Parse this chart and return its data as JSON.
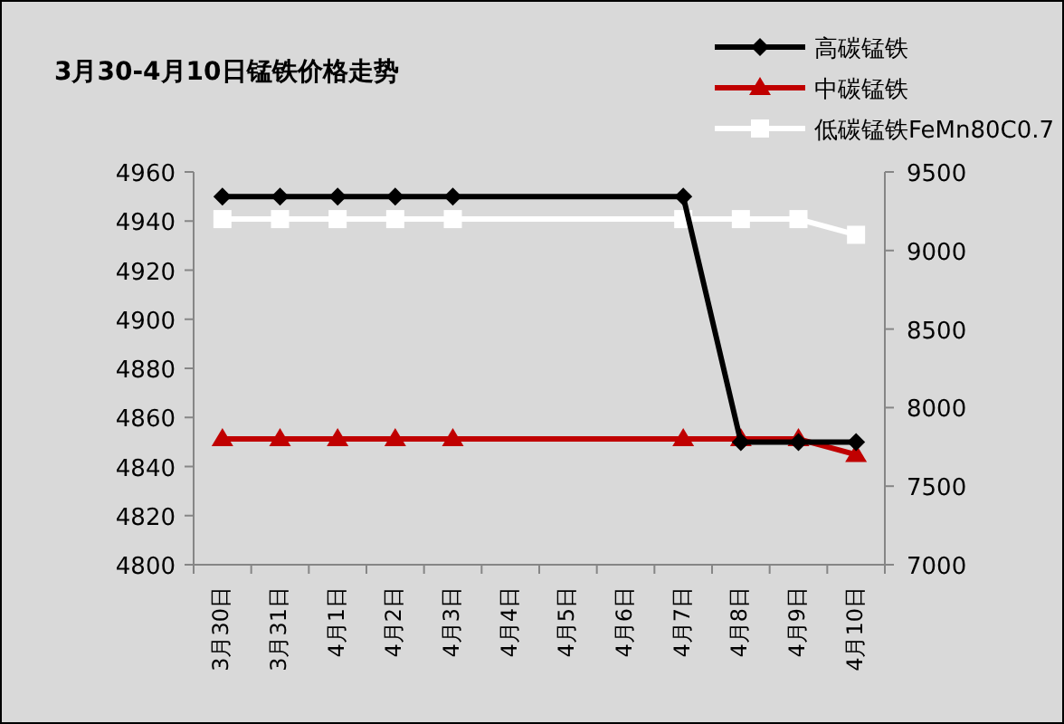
{
  "chart_data": {
    "type": "line",
    "title": "3月30-4月10日锰铁价格走势",
    "categories": [
      "3月30日",
      "3月31日",
      "4月1日",
      "4月2日",
      "4月3日",
      "4月4日",
      "4月5日",
      "4月6日",
      "4月7日",
      "4月8日",
      "4月9日",
      "4月10日"
    ],
    "series": [
      {
        "name": "高碳锰铁",
        "color": "#000000",
        "marker": "diamond",
        "values": [
          4950,
          4950,
          4950,
          4950,
          4950,
          null,
          null,
          null,
          4950,
          4850,
          4850,
          4850
        ]
      },
      {
        "name": "中碳锰铁",
        "color": "#c00000",
        "marker": "triangle",
        "axis": "y2",
        "values": [
          7800,
          7800,
          7800,
          7800,
          7800,
          null,
          null,
          null,
          7800,
          7800,
          7800,
          7700
        ]
      },
      {
        "name": "低碳锰铁FeMn80C0.7",
        "color": "#ffffff",
        "marker": "square",
        "axis": "y2",
        "values": [
          9200,
          9200,
          9200,
          9200,
          9200,
          null,
          null,
          null,
          9200,
          9200,
          9200,
          9100
        ]
      }
    ],
    "ylim": [
      4800,
      4960
    ],
    "yticks": [
      4800,
      4820,
      4840,
      4860,
      4880,
      4900,
      4920,
      4940,
      4960
    ],
    "y2lim": [
      7000,
      9500
    ],
    "y2ticks": [
      7000,
      7500,
      8000,
      8500,
      9000,
      9500
    ],
    "grid": false,
    "legend": "top right"
  }
}
